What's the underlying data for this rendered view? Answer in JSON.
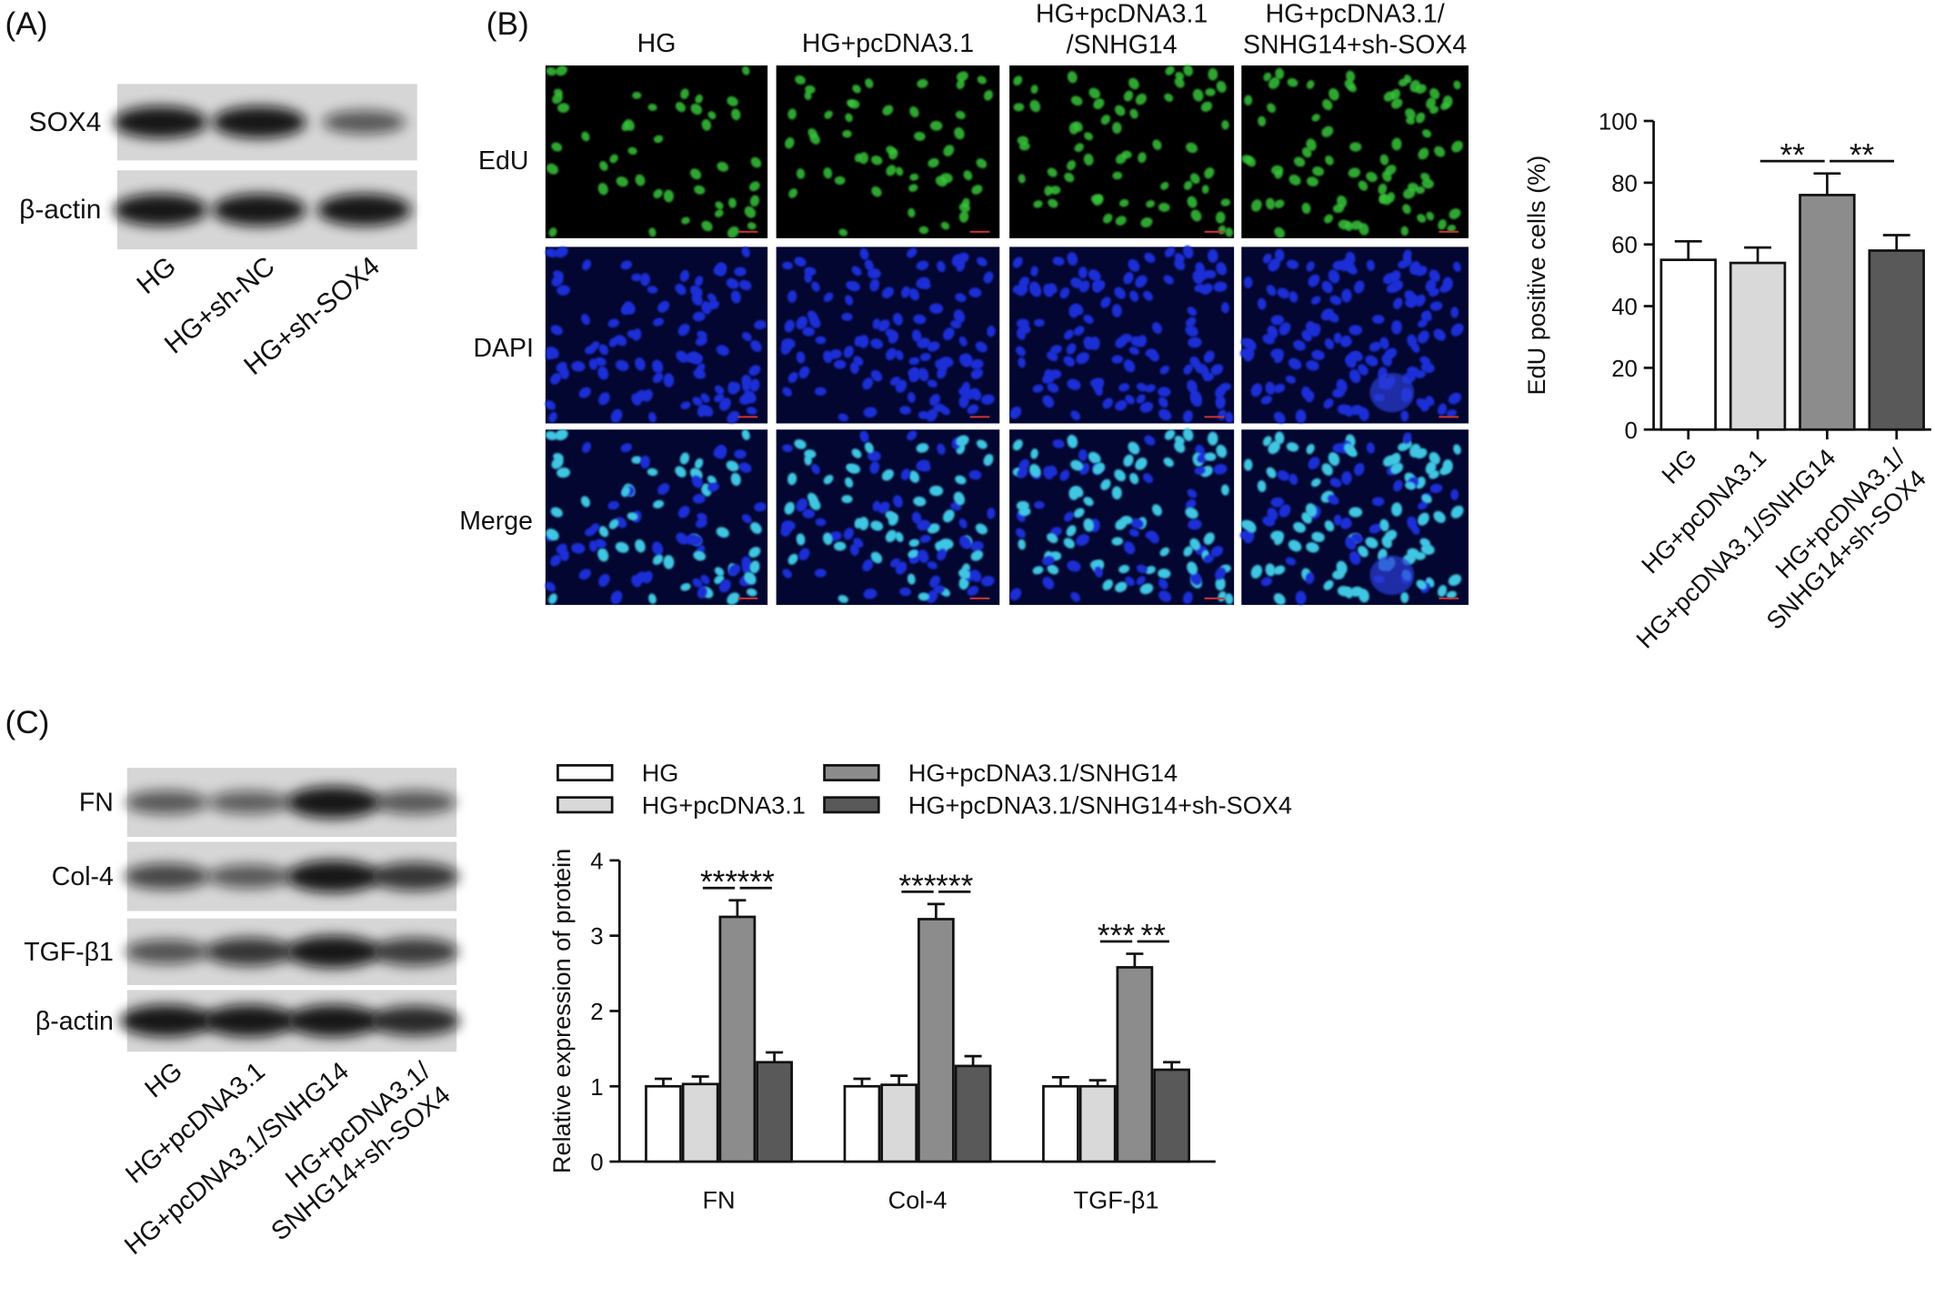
{
  "panel_a": {
    "label": "(A)",
    "rows": [
      "SOX4",
      "β-actin"
    ],
    "lanes": [
      "HG",
      "HG+sh-NC",
      "HG+sh-SOX4"
    ]
  },
  "panel_b": {
    "label": "(B)",
    "columns": [
      "HG",
      "HG+pcDNA3.1",
      "HG+pcDNA3.1\n/SNHG14",
      "HG+pcDNA3.1/\nSNHG14+sh-SOX4"
    ],
    "rows": [
      "EdU",
      "DAPI",
      "Merge"
    ]
  },
  "panel_c": {
    "label": "(C)",
    "rows": [
      "FN",
      "Col-4",
      "TGF-β1",
      "β-actin"
    ],
    "lanes": [
      "HG",
      "HG+pcDNA3.1",
      "HG+pcDNA3.1/SNHG14",
      "HG+pcDNA3.1/\nSNHG14+sh-SOX4"
    ]
  },
  "chart_data": [
    {
      "type": "bar",
      "y_label": "EdU positive cells (%)",
      "categories": [
        "HG",
        "HG+pcDNA3.1",
        "HG+pcDNA3.1/SNHG14",
        "HG+pcDNA3.1/\nSNHG14+sh-SOX4"
      ],
      "values": [
        55,
        54,
        76,
        58
      ],
      "errors": [
        6,
        5,
        7,
        5
      ],
      "colors": [
        "#ffffff",
        "#d9d9d9",
        "#8c8c8c",
        "#595959"
      ],
      "ylim": [
        0,
        100
      ],
      "yticks": [
        0,
        20,
        40,
        60,
        80,
        100
      ],
      "significance": [
        {
          "from": 1,
          "to": 2,
          "text": "**"
        },
        {
          "from": 2,
          "to": 3,
          "text": "**"
        }
      ]
    },
    {
      "type": "grouped_bar",
      "y_label": "Relative expression of protein",
      "categories": [
        "FN",
        "Col-4",
        "TGF-β1"
      ],
      "series": [
        {
          "name": "HG",
          "color": "#ffffff",
          "values": [
            1.0,
            1.0,
            1.0
          ],
          "errors": [
            0.1,
            0.1,
            0.12
          ]
        },
        {
          "name": "HG+pcDNA3.1",
          "color": "#d9d9d9",
          "values": [
            1.03,
            1.02,
            1.0
          ],
          "errors": [
            0.1,
            0.12,
            0.08
          ]
        },
        {
          "name": "HG+pcDNA3.1/SNHG14",
          "color": "#8c8c8c",
          "values": [
            3.25,
            3.22,
            2.58
          ],
          "errors": [
            0.22,
            0.2,
            0.18
          ]
        },
        {
          "name": "HG+pcDNA3.1/SNHG14+sh-SOX4",
          "color": "#595959",
          "values": [
            1.32,
            1.27,
            1.22
          ],
          "errors": [
            0.13,
            0.13,
            0.1
          ]
        }
      ],
      "ylim": [
        0,
        4
      ],
      "yticks": [
        0,
        1,
        2,
        3,
        4
      ],
      "significance": [
        {
          "category": 0,
          "from": 1,
          "to": 2,
          "text": "***"
        },
        {
          "category": 0,
          "from": 2,
          "to": 3,
          "text": "***"
        },
        {
          "category": 1,
          "from": 1,
          "to": 2,
          "text": "***"
        },
        {
          "category": 1,
          "from": 2,
          "to": 3,
          "text": "***"
        },
        {
          "category": 2,
          "from": 1,
          "to": 2,
          "text": "***"
        },
        {
          "category": 2,
          "from": 2,
          "to": 3,
          "text": "**"
        }
      ]
    }
  ]
}
